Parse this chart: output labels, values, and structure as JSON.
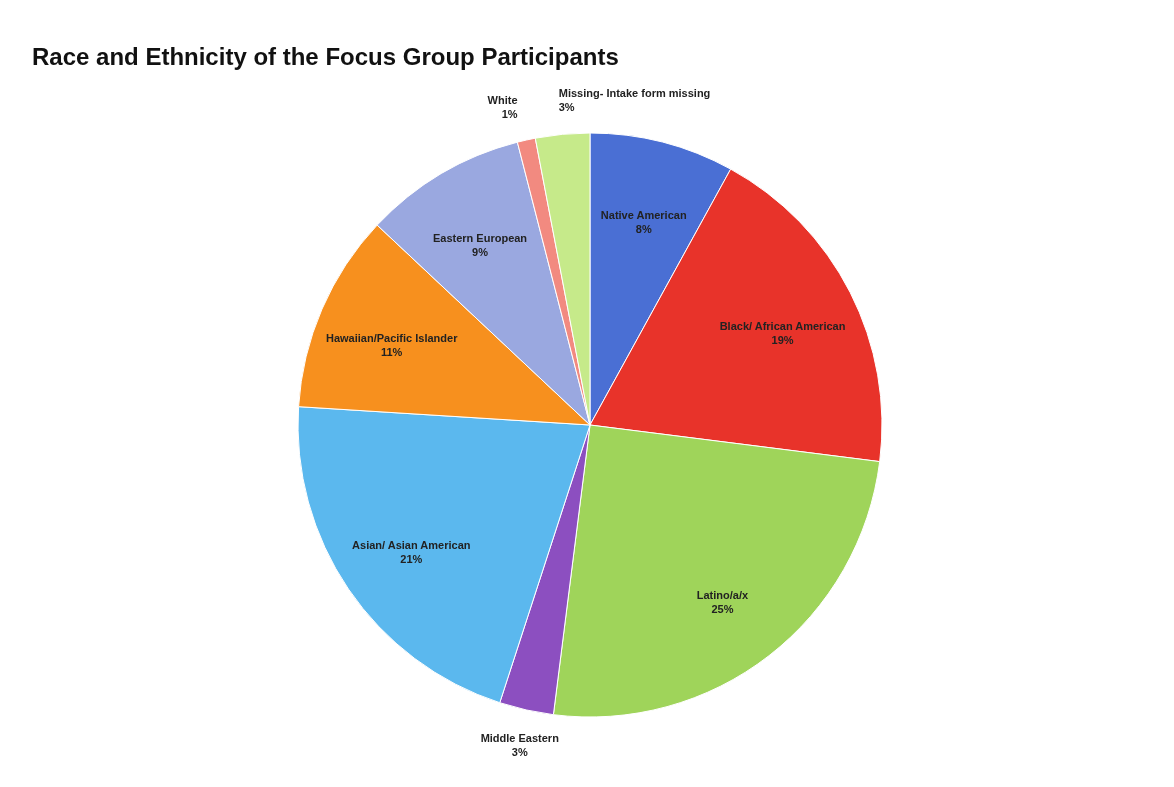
{
  "chart_data": {
    "type": "pie",
    "title": "Race and Ethnicity of the Focus Group Participants",
    "categories": [
      "Native American",
      "Black/ African American",
      "Latino/a/x",
      "Middle Eastern",
      "Asian/ Asian American",
      "Hawaiian/Pacific Islander",
      "Eastern European",
      "White",
      "Missing- Intake form missing"
    ],
    "values": [
      8,
      19,
      25,
      3,
      21,
      11,
      9,
      1,
      3
    ],
    "value_labels": [
      "8%",
      "19%",
      "25%",
      "3%",
      "21%",
      "11%",
      "9%",
      "1%",
      "3%"
    ],
    "colors": [
      "#4a6fd4",
      "#e8332a",
      "#9fd45a",
      "#8c4fc0",
      "#5bb8ee",
      "#f7901e",
      "#9aa8e0",
      "#f28a80",
      "#c6ea8a"
    ],
    "legend": false
  }
}
